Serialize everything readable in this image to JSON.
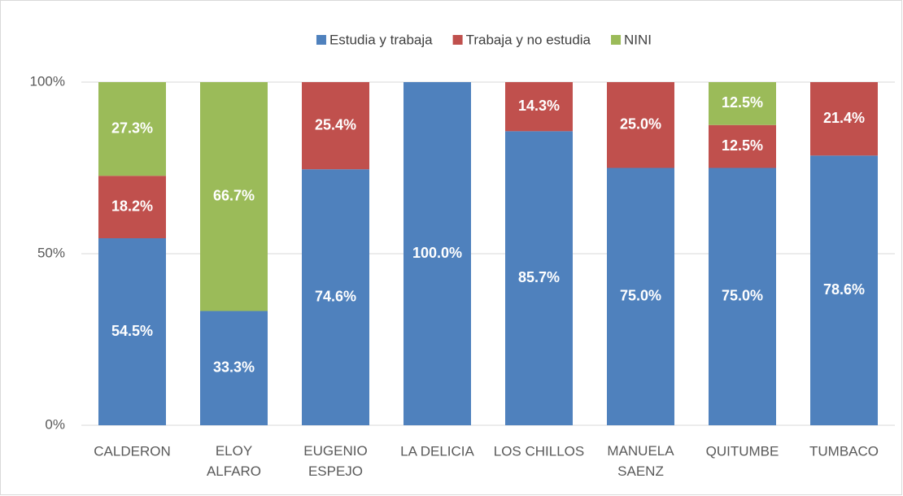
{
  "chart_data": {
    "type": "stacked_bar",
    "categories": [
      "CALDERON",
      "ELOY\nALFARO",
      "EUGENIO\nESPEJO",
      "LA DELICIA",
      "LOS CHILLOS",
      "MANUELA\nSAENZ",
      "QUITUMBE",
      "TUMBACO"
    ],
    "series": [
      {
        "name": "Estudia y trabaja",
        "color": "#4f81bd",
        "values": [
          54.5,
          33.3,
          74.6,
          100,
          85.7,
          75,
          75,
          78.6
        ],
        "value_labels": [
          "54.5%",
          "33.3%",
          "74.6%",
          "100.0%",
          "85.7%",
          "75.0%",
          "75.0%",
          "78.6%"
        ]
      },
      {
        "name": "Trabaja y no estudia",
        "color": "#c0504d",
        "values": [
          18.2,
          null,
          25.4,
          null,
          14.3,
          25,
          12.5,
          21.4
        ],
        "value_labels": [
          "18.2%",
          null,
          "25.4%",
          null,
          "14.3%",
          "25.0%",
          "12.5%",
          "21.4%"
        ]
      },
      {
        "name": "NINI",
        "color": "#9bbb59",
        "values": [
          27.3,
          66.7,
          null,
          null,
          null,
          null,
          12.5,
          null
        ],
        "value_labels": [
          "27.3%",
          "66.7%",
          null,
          null,
          null,
          null,
          "12.5%",
          null
        ]
      }
    ],
    "ylim": [
      0,
      100
    ],
    "yticks": [
      {
        "value": 0,
        "label": "0%"
      },
      {
        "value": 50,
        "label": "50%"
      },
      {
        "value": 100,
        "label": "100%"
      }
    ],
    "grid": true,
    "legend": "top"
  }
}
